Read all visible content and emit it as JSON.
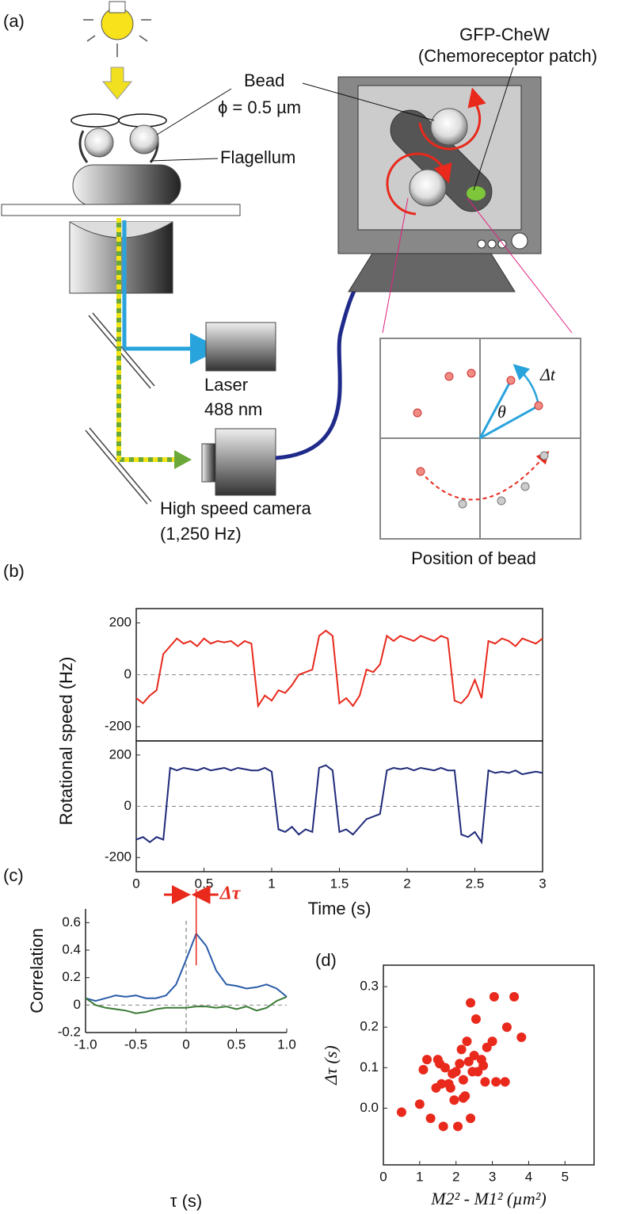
{
  "panel_labels": [
    "(a)",
    "(b)",
    "(c)",
    "(d)"
  ],
  "diagram": {
    "bead": "Bead",
    "bead_size": "ϕ = 0.5 µm",
    "flagellum": "Flagellum",
    "gfp": "GFP-CheW",
    "patch": "(Chemoreceptor patch)",
    "laser": "Laser",
    "laser_wavelength": "488 nm",
    "camera": "High speed camera",
    "camera_rate": "(1,250 Hz)",
    "position": "Position of bead",
    "dt": "Δt",
    "theta": "θ"
  },
  "chart_data": [
    {
      "type": "line",
      "ylabel": "Rotational speed (Hz)",
      "xlim": [
        0,
        3
      ],
      "ylim": [
        -255,
        255
      ],
      "yticks": [
        -200,
        0,
        200
      ],
      "x": [
        0,
        0.05,
        0.1,
        0.15,
        0.2,
        0.25,
        0.3,
        0.35,
        0.4,
        0.45,
        0.5,
        0.55,
        0.6,
        0.65,
        0.7,
        0.75,
        0.8,
        0.85,
        0.9,
        0.95,
        1,
        1.05,
        1.1,
        1.15,
        1.2,
        1.25,
        1.3,
        1.35,
        1.4,
        1.45,
        1.5,
        1.55,
        1.6,
        1.65,
        1.7,
        1.75,
        1.8,
        1.85,
        1.9,
        1.95,
        2,
        2.05,
        2.1,
        2.15,
        2.2,
        2.25,
        2.3,
        2.35,
        2.4,
        2.45,
        2.5,
        2.55,
        2.6,
        2.65,
        2.7,
        2.75,
        2.8,
        2.85,
        2.9,
        2.95,
        3
      ],
      "series": [
        {
          "color": "#e8291c",
          "values": [
            -90,
            -110,
            -80,
            -60,
            80,
            110,
            140,
            120,
            130,
            110,
            140,
            120,
            130,
            125,
            130,
            110,
            130,
            120,
            -120,
            -80,
            -100,
            -60,
            -70,
            -40,
            0,
            10,
            20,
            150,
            170,
            150,
            -110,
            -90,
            -120,
            -80,
            20,
            10,
            40,
            150,
            130,
            150,
            140,
            130,
            150,
            140,
            130,
            150,
            140,
            -100,
            -110,
            -80,
            -20,
            -90,
            130,
            120,
            140,
            130,
            110,
            140,
            130,
            120,
            140
          ]
        }
      ]
    },
    {
      "type": "line",
      "xlabel": "Time (s)",
      "xlim": [
        0,
        3
      ],
      "ylim": [
        -255,
        255
      ],
      "yticks": [
        -200,
        0,
        200
      ],
      "xticks": [
        0,
        0.5,
        1,
        1.5,
        2,
        2.5,
        3
      ],
      "x": [
        0,
        0.05,
        0.1,
        0.15,
        0.2,
        0.25,
        0.3,
        0.35,
        0.4,
        0.45,
        0.5,
        0.55,
        0.6,
        0.65,
        0.7,
        0.75,
        0.8,
        0.85,
        0.9,
        0.95,
        1,
        1.05,
        1.1,
        1.15,
        1.2,
        1.25,
        1.3,
        1.35,
        1.4,
        1.45,
        1.5,
        1.55,
        1.6,
        1.65,
        1.7,
        1.75,
        1.8,
        1.85,
        1.9,
        1.95,
        2,
        2.05,
        2.1,
        2.15,
        2.2,
        2.25,
        2.3,
        2.35,
        2.4,
        2.45,
        2.5,
        2.55,
        2.6,
        2.65,
        2.7,
        2.75,
        2.8,
        2.85,
        2.9,
        2.95,
        3
      ],
      "series": [
        {
          "color": "#1f2a7a",
          "values": [
            -130,
            -120,
            -140,
            -120,
            -130,
            150,
            140,
            150,
            145,
            140,
            150,
            140,
            145,
            150,
            140,
            150,
            145,
            140,
            140,
            150,
            135,
            -90,
            -100,
            -80,
            -110,
            -90,
            -100,
            150,
            160,
            140,
            -100,
            -90,
            -110,
            -80,
            -50,
            -40,
            -30,
            140,
            150,
            145,
            150,
            140,
            150,
            145,
            140,
            150,
            140,
            140,
            -110,
            -120,
            -100,
            -140,
            140,
            130,
            135,
            130,
            140,
            125,
            130,
            135,
            130
          ]
        }
      ]
    },
    {
      "type": "line",
      "ylabel": "Correlation",
      "xlabel": "τ (s)",
      "annotation": "Δτ",
      "xlim": [
        -1,
        1
      ],
      "ylim": [
        -0.2,
        0.7
      ],
      "xticks": [
        {
          "value": -1,
          "label": "-1.0"
        },
        -0.5,
        0,
        0.5,
        {
          "value": 1,
          "label": "1.0"
        }
      ],
      "yticks": [
        -0.2,
        0,
        0.2,
        0.4,
        0.6
      ],
      "x": [
        -1,
        -0.9,
        -0.8,
        -0.7,
        -0.6,
        -0.5,
        -0.4,
        -0.3,
        -0.2,
        -0.1,
        0,
        0.1,
        0.2,
        0.3,
        0.4,
        0.5,
        0.6,
        0.7,
        0.8,
        0.9,
        1
      ],
      "series": [
        {
          "color": "#2a5ca8",
          "values": [
            0.05,
            0.03,
            0.05,
            0.07,
            0.06,
            0.07,
            0.05,
            0.05,
            0.07,
            0.15,
            0.33,
            0.52,
            0.43,
            0.25,
            0.15,
            0.14,
            0.12,
            0.13,
            0.15,
            0.12,
            0.06
          ]
        },
        {
          "color": "#3a7a35",
          "values": [
            0.05,
            0,
            -0.02,
            -0.03,
            -0.04,
            -0.06,
            -0.05,
            -0.03,
            -0.02,
            -0.02,
            -0.02,
            -0.01,
            -0.01,
            -0.02,
            -0.01,
            -0.03,
            -0.01,
            -0.04,
            -0.02,
            0.03,
            0.06
          ]
        }
      ]
    },
    {
      "type": "scatter",
      "ylabel": "Δτ (s)",
      "xlabel": "M2² - M1² (µm²)",
      "color": "#e8291c",
      "xlim": [
        0,
        5.8
      ],
      "ylim": [
        -0.14,
        0.353
      ],
      "xticks": [
        0,
        1,
        2,
        3,
        4,
        5
      ],
      "yticks": [
        {
          "value": 0,
          "label": "0.0"
        },
        0.1,
        0.2,
        0.3
      ],
      "x": [
        0.5,
        1.0,
        1.1,
        1.2,
        1.3,
        1.45,
        1.5,
        1.55,
        1.6,
        1.65,
        1.7,
        1.8,
        1.85,
        1.9,
        1.95,
        2.0,
        2.05,
        2.1,
        2.15,
        2.2,
        2.2,
        2.25,
        2.3,
        2.35,
        2.4,
        2.4,
        2.45,
        2.5,
        2.55,
        2.6,
        2.7,
        2.75,
        2.8,
        2.85,
        3.0,
        3.05,
        3.1,
        3.35,
        3.4,
        3.6,
        3.8
      ],
      "values": [
        -0.01,
        0.01,
        0.095,
        0.12,
        -0.025,
        0.05,
        0.12,
        0.11,
        0.06,
        -0.045,
        0.1,
        0.06,
        0.05,
        0.085,
        0.02,
        0.09,
        -0.045,
        0.11,
        0.145,
        0.07,
        0.025,
        0.03,
        0.165,
        0.115,
        -0.025,
        0.26,
        0.09,
        0.13,
        0.22,
        0.09,
        0.12,
        0.105,
        0.065,
        0.15,
        0.165,
        0.275,
        0.065,
        0.065,
        0.2,
        0.275,
        0.175
      ]
    }
  ]
}
